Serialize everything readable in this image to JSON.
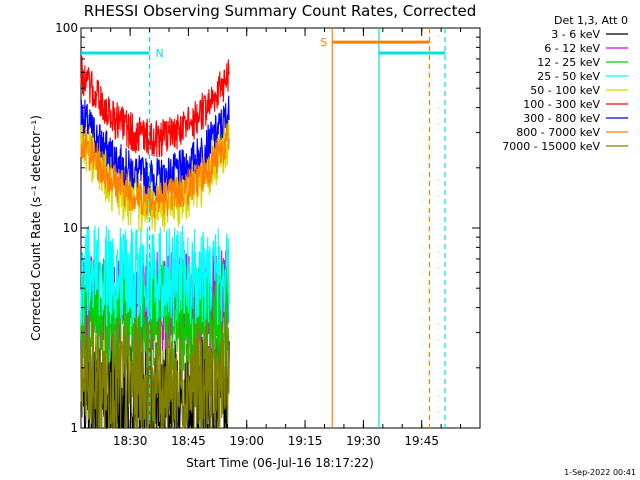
{
  "chart_data": {
    "type": "line",
    "title": "RHESSI Observing Summary Count Rates, Corrected",
    "xlabel": "Start Time (06-Jul-16 18:17:22)",
    "ylabel": "Corrected Count Rate (s⁻¹ detector⁻¹)",
    "y_scale": "log",
    "ylim": [
      1,
      100
    ],
    "xlim": [
      "18:17:22",
      "20:00:00"
    ],
    "x_ticks": [
      "18:30",
      "18:45",
      "19:00",
      "19:15",
      "19:30",
      "19:45"
    ],
    "y_ticks": [
      "1",
      "10",
      "100"
    ],
    "data_span": [
      "18:17:22",
      "18:55:30"
    ],
    "legend_header": "Det 1,3, Att 0",
    "series": [
      {
        "name": "3 - 6 keV",
        "color": "#000000",
        "profile": "flat",
        "level": 1.4,
        "noise": 1.6
      },
      {
        "name": "6 - 12 keV",
        "color": "#e000e0",
        "profile": "flat",
        "level": 4.3,
        "noise": 1.45
      },
      {
        "name": "12 - 25 keV",
        "color": "#00d000",
        "profile": "flat",
        "level": 3.7,
        "noise": 1.5
      },
      {
        "name": "25 - 50 keV",
        "color": "#00ffff",
        "profile": "flat",
        "level": 5.8,
        "noise": 1.45
      },
      {
        "name": "50 - 100 keV",
        "color": "#d8d800",
        "profile": "bowl",
        "edge": 30,
        "min": 13,
        "noise": 1.25
      },
      {
        "name": "100 - 300 keV",
        "color": "#ff0000",
        "profile": "bowl",
        "edge": 60,
        "min": 28,
        "noise": 1.15
      },
      {
        "name": "300 - 800 keV",
        "color": "#0000ff",
        "profile": "bowl",
        "edge": 38,
        "min": 18,
        "noise": 1.15
      },
      {
        "name": "800 - 7000 keV",
        "color": "#ff8000",
        "profile": "bowl",
        "edge": 28,
        "min": 14,
        "noise": 1.15
      },
      {
        "name": "7000 - 15000 keV",
        "color": "#808000",
        "profile": "flat",
        "level": 1.7,
        "noise": 1.6
      }
    ],
    "annotations": [
      {
        "label": "N",
        "color": "#00e0e0",
        "start": "18:17:22",
        "end": "18:35:00",
        "style": "bar",
        "bar_level": 75
      },
      {
        "label": "",
        "color": "#00e0e0",
        "start": "19:34:00",
        "end": "19:51:00",
        "style": "bar",
        "bar_level": 75
      },
      {
        "label": "S",
        "color": "#ff8000",
        "start": "19:22:00",
        "end": "19:47:00",
        "style": "bar",
        "bar_level": 85
      }
    ],
    "footer": "1-Sep-2022 00:41"
  }
}
